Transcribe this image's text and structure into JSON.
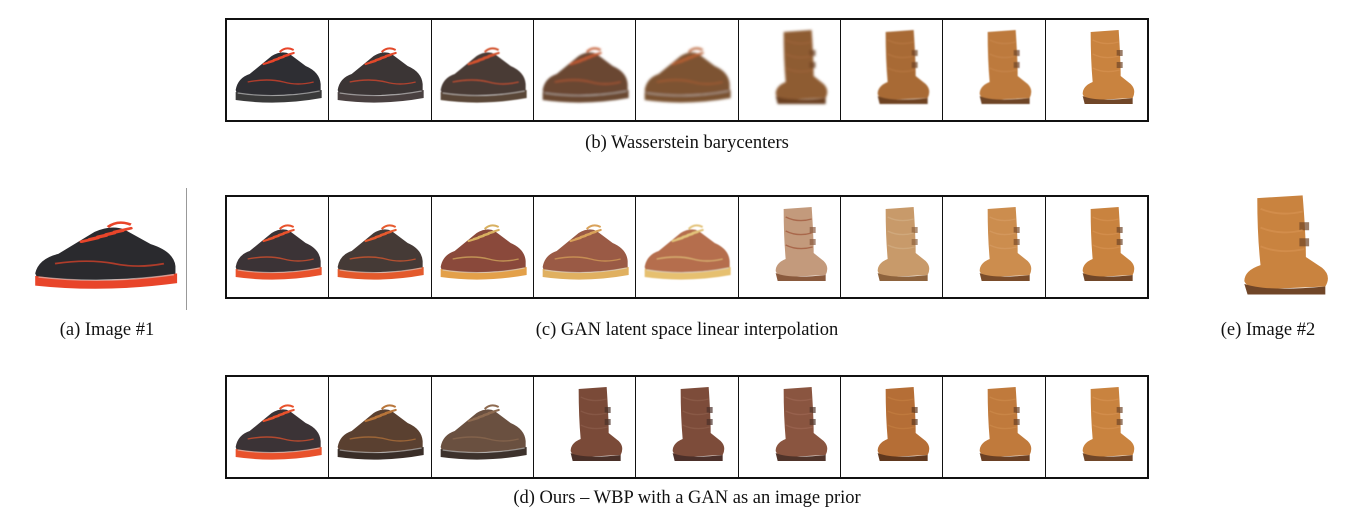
{
  "captions": {
    "b": "(b) Wasserstein barycenters",
    "c": "(c) GAN latent space linear interpolation",
    "d": "(d) Ours – WBP with a GAN as an image prior",
    "a": "(a) Image #1",
    "e": "(e) Image #2"
  },
  "rows": {
    "b": {
      "cells": [
        {
          "kind": "sneaker",
          "upper": "#2e2e33",
          "accent": "#e8452a",
          "sole": "#3a3a3a",
          "blur": 0
        },
        {
          "kind": "sneaker",
          "upper": "#3a3436",
          "accent": "#e24a2c",
          "sole": "#4a4040",
          "blur": 0.3
        },
        {
          "kind": "sneaker",
          "upper": "#4a3a35",
          "accent": "#d2532f",
          "sole": "#5a4638",
          "blur": 0.6
        },
        {
          "kind": "sneaker",
          "upper": "#6a4733",
          "accent": "#c25a32",
          "sole": "#6b4a33",
          "blur": 1.0
        },
        {
          "kind": "sneaker",
          "upper": "#7d5233",
          "accent": "#b86034",
          "sole": "#7a5233",
          "blur": 1.3
        },
        {
          "kind": "boot",
          "upper": "#8e5b33",
          "accent": "#a0653a",
          "sole": "#6a3f22",
          "blur": 1.2
        },
        {
          "kind": "boot",
          "upper": "#a86a36",
          "accent": "#b5753e",
          "sole": "#6e4224",
          "blur": 0.8
        },
        {
          "kind": "boot",
          "upper": "#bd7a3d",
          "accent": "#c7854a",
          "sole": "#6e4426",
          "blur": 0.4
        },
        {
          "kind": "boot",
          "upper": "#c9833f",
          "accent": "#d4904f",
          "sole": "#704628",
          "blur": 0
        }
      ]
    },
    "c": {
      "cells": [
        {
          "kind": "sneaker",
          "upper": "#3b3336",
          "accent": "#e8522c",
          "sole": "#e8522c",
          "blur": 0
        },
        {
          "kind": "sneaker",
          "upper": "#453a36",
          "accent": "#e65a2e",
          "sole": "#e35a2c",
          "blur": 0
        },
        {
          "kind": "sneaker",
          "upper": "#8a4a3a",
          "accent": "#d8b060",
          "sole": "#e3a04a",
          "blur": 0.2
        },
        {
          "kind": "sneaker",
          "upper": "#9a5a44",
          "accent": "#d9a25a",
          "sole": "#e0b060",
          "blur": 0.3
        },
        {
          "kind": "sneaker",
          "upper": "#b56e4e",
          "accent": "#e3c37a",
          "sole": "#e6c070",
          "blur": 0.4
        },
        {
          "kind": "boot",
          "upper": "#c39a7c",
          "accent": "#a35a40",
          "sole": "#8a5a3e",
          "blur": 0.3
        },
        {
          "kind": "boot",
          "upper": "#c89a6a",
          "accent": "#d1ab80",
          "sole": "#8e633e",
          "blur": 0.2
        },
        {
          "kind": "boot",
          "upper": "#cc8d4e",
          "accent": "#d59a60",
          "sole": "#7a4c2a",
          "blur": 0
        },
        {
          "kind": "boot",
          "upper": "#c9833f",
          "accent": "#d4904f",
          "sole": "#704628",
          "blur": 0
        }
      ]
    },
    "d": {
      "cells": [
        {
          "kind": "sneaker",
          "upper": "#3b3336",
          "accent": "#e8522c",
          "sole": "#e8522c",
          "blur": 0
        },
        {
          "kind": "sneaker",
          "upper": "#5a4030",
          "accent": "#b8753a",
          "sole": "#3a2e28",
          "blur": 0
        },
        {
          "kind": "sneaker",
          "upper": "#6a5040",
          "accent": "#8d6a50",
          "sole": "#3d322c",
          "blur": 0
        },
        {
          "kind": "boot",
          "upper": "#7a4a38",
          "accent": "#8a5a48",
          "sole": "#4a3028",
          "blur": 0
        },
        {
          "kind": "boot",
          "upper": "#7d4c3a",
          "accent": "#8c5d4a",
          "sole": "#4c302a",
          "blur": 0
        },
        {
          "kind": "boot",
          "upper": "#8a5540",
          "accent": "#9a6450",
          "sole": "#50342a",
          "blur": 0
        },
        {
          "kind": "boot",
          "upper": "#b56e36",
          "accent": "#c27c40",
          "sole": "#60381e",
          "blur": 0
        },
        {
          "kind": "boot",
          "upper": "#c07a3c",
          "accent": "#cb8848",
          "sole": "#6a4024",
          "blur": 0
        },
        {
          "kind": "boot",
          "upper": "#c9833f",
          "accent": "#d4904f",
          "sole": "#704628",
          "blur": 0
        }
      ]
    }
  },
  "endpoints": {
    "a": {
      "kind": "sneaker",
      "upper": "#2a2a2e",
      "accent": "#e8452a",
      "sole": "#e8452a",
      "blur": 0
    },
    "e": {
      "kind": "boot",
      "upper": "#c9833f",
      "accent": "#d4904f",
      "sole": "#704628",
      "blur": 0
    }
  }
}
